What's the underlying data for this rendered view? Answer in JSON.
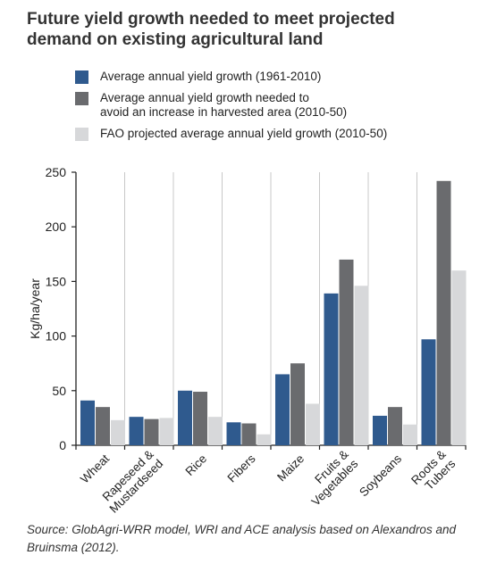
{
  "title_line1": "Future yield growth needed to meet projected",
  "title_line2": "demand on existing  agricultural land",
  "source": "Source: GlobAgri-WRR model, WRI and ACE analysis based on Alexandros and Bruinsma (2012).",
  "chart_data": {
    "type": "bar",
    "ylabel": "Kg/ha/year",
    "ylim": [
      0,
      250
    ],
    "yticks": [
      0,
      50,
      100,
      150,
      200,
      250
    ],
    "categories": [
      "Wheat",
      "Rapeseed & Mustardseed",
      "Rice",
      "Fibers",
      "Maize",
      "Fruits & Vegetables",
      "Soybeans",
      "Roots & Tubers"
    ],
    "category_lines": [
      [
        "Wheat"
      ],
      [
        "Rapeseed &",
        "Mustardseed"
      ],
      [
        "Rice"
      ],
      [
        "Fibers"
      ],
      [
        "Maize"
      ],
      [
        "Fruits &",
        "Vegetables"
      ],
      [
        "Soybeans"
      ],
      [
        "Roots &",
        "Tubers"
      ]
    ],
    "series": [
      {
        "name": "Average annual yield growth (1961-2010)",
        "name_lines": [
          "Average annual yield growth (1961-2010)"
        ],
        "color": "#2f5a8e",
        "values": [
          41,
          26,
          50,
          21,
          65,
          139,
          27,
          97
        ]
      },
      {
        "name": "Average annual yield growth needed to avoid an increase in harvested area (2010-50)",
        "name_lines": [
          "Average annual yield growth needed to",
          "avoid an increase in harvested area (2010-50)"
        ],
        "color": "#6a6b6e",
        "values": [
          35,
          24,
          49,
          20,
          75,
          170,
          35,
          242
        ]
      },
      {
        "name": "FAO projected average annual yield growth (2010-50)",
        "name_lines": [
          "FAO projected average annual yield growth (2010-50)"
        ],
        "color": "#d7d8da",
        "values": [
          23,
          25,
          26,
          10,
          38,
          146,
          19,
          160
        ]
      }
    ],
    "grid": "vertical separators between categories",
    "legend_position": "top"
  }
}
